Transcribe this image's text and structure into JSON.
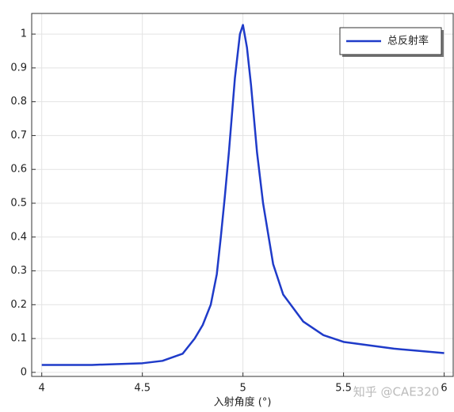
{
  "chart_data": {
    "type": "line",
    "x_label": "入射角度 (°)",
    "watermark": "知乎 @CAE320",
    "x": [
      4.0,
      4.25,
      4.5,
      4.6,
      4.7,
      4.76,
      4.8,
      4.84,
      4.87,
      4.89,
      4.91,
      4.93,
      4.96,
      4.985,
      5.0,
      5.02,
      5.04,
      5.07,
      5.1,
      5.15,
      5.2,
      5.3,
      5.4,
      5.5,
      5.75,
      6.0
    ],
    "series": [
      {
        "name": "总反射率",
        "color": "#1f3bc9",
        "values": [
          0.022,
          0.022,
          0.027,
          0.034,
          0.055,
          0.1,
          0.14,
          0.2,
          0.29,
          0.4,
          0.52,
          0.65,
          0.87,
          1.0,
          1.027,
          0.96,
          0.85,
          0.65,
          0.5,
          0.32,
          0.23,
          0.15,
          0.11,
          0.09,
          0.07,
          0.057
        ]
      }
    ],
    "xlim": [
      3.95,
      6.045
    ],
    "ylim": [
      -0.012,
      1.061
    ],
    "xticks": [
      4,
      4.5,
      5,
      5.5,
      6
    ],
    "yticks": [
      0,
      0.1,
      0.2,
      0.3,
      0.4,
      0.5,
      0.6,
      0.7,
      0.8,
      0.9,
      1
    ],
    "grid": true,
    "legend_position": "upper right"
  }
}
